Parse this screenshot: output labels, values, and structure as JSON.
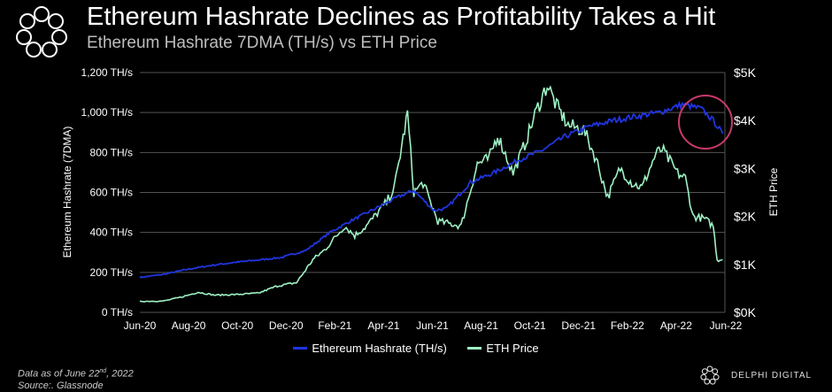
{
  "title": "Ethereum Hashrate Declines as Profitability Takes a Hit",
  "subtitle": "Ethereum Hashrate 7DMA (TH/s) vs ETH Price",
  "footnote": {
    "line1_pre": "Data as of June 22",
    "line1_sup": "nd",
    "line1_post": ", 2022",
    "line2": "Source:. Glassnode"
  },
  "brand": "DELPHI DIGITAL",
  "colors": {
    "hashrate": "#2035e0",
    "price": "#9ef2c4",
    "highlight": "#c83a6a",
    "grid": "#555555"
  },
  "chart_data": {
    "type": "line",
    "title": "Ethereum Hashrate 7DMA (TH/s) vs ETH Price",
    "ylabel": "Ethereum Hashrate (7DMA)",
    "y2label": "ETH Price",
    "ylim": [
      0,
      1200
    ],
    "y2lim": [
      0,
      5000
    ],
    "xlim": [
      "2020-06-01",
      "2022-06-25"
    ],
    "yticks": [
      "0 TH/s",
      "200 TH/s",
      "400 TH/s",
      "600 TH/s",
      "800 TH/s",
      "1,000 TH/s",
      "1,200 TH/s"
    ],
    "y2ticks": [
      "$0K",
      "$1K",
      "$2K",
      "$3K",
      "$4K",
      "$5K"
    ],
    "xticks": [
      "Jun-20",
      "Aug-20",
      "Oct-20",
      "Dec-20",
      "Feb-21",
      "Apr-21",
      "Jun-21",
      "Aug-21",
      "Oct-21",
      "Dec-21",
      "Feb-22",
      "Apr-22",
      "Jun-22"
    ],
    "grid": true,
    "legend_position": "bottom",
    "series": [
      {
        "name": "Ethereum Hashrate (TH/s)",
        "axis": "left",
        "x": [
          "2020-06-01",
          "2020-07-01",
          "2020-08-01",
          "2020-09-01",
          "2020-10-01",
          "2020-11-01",
          "2020-12-01",
          "2021-01-01",
          "2021-02-01",
          "2021-03-01",
          "2021-04-01",
          "2021-05-01",
          "2021-05-20",
          "2021-06-15",
          "2021-07-01",
          "2021-08-01",
          "2021-09-01",
          "2021-10-01",
          "2021-11-01",
          "2021-12-01",
          "2022-01-01",
          "2022-02-01",
          "2022-03-01",
          "2022-04-01",
          "2022-05-01",
          "2022-05-25",
          "2022-06-10",
          "2022-06-22"
        ],
        "y": [
          175,
          190,
          215,
          235,
          250,
          262,
          275,
          310,
          400,
          460,
          520,
          580,
          610,
          510,
          520,
          650,
          700,
          760,
          810,
          880,
          930,
          960,
          980,
          1000,
          1040,
          1020,
          960,
          895
        ]
      },
      {
        "name": "ETH Price",
        "axis": "right",
        "x": [
          "2020-06-01",
          "2020-07-01",
          "2020-07-25",
          "2020-08-15",
          "2020-09-05",
          "2020-10-01",
          "2020-11-01",
          "2020-11-25",
          "2020-12-20",
          "2021-01-10",
          "2021-01-25",
          "2021-02-20",
          "2021-03-05",
          "2021-03-20",
          "2021-04-15",
          "2021-04-25",
          "2021-05-12",
          "2021-05-20",
          "2021-06-01",
          "2021-06-20",
          "2021-07-20",
          "2021-08-10",
          "2021-08-25",
          "2021-09-05",
          "2021-09-25",
          "2021-10-10",
          "2021-10-25",
          "2021-11-08",
          "2021-11-20",
          "2021-12-05",
          "2021-12-25",
          "2022-01-10",
          "2022-01-25",
          "2022-02-10",
          "2022-02-25",
          "2022-03-10",
          "2022-03-28",
          "2022-04-05",
          "2022-04-25",
          "2022-05-05",
          "2022-05-15",
          "2022-05-30",
          "2022-06-10",
          "2022-06-15",
          "2022-06-22"
        ],
        "y": [
          230,
          235,
          320,
          420,
          360,
          370,
          400,
          550,
          620,
          1100,
          1300,
          1800,
          1600,
          1800,
          2300,
          2600,
          4150,
          2500,
          2700,
          1900,
          1800,
          3100,
          3200,
          3700,
          2900,
          3500,
          4200,
          4750,
          4300,
          3900,
          3800,
          3200,
          2400,
          3000,
          2700,
          2600,
          3300,
          3400,
          2900,
          2800,
          2000,
          1950,
          1800,
          1100,
          1100
        ]
      }
    ]
  }
}
